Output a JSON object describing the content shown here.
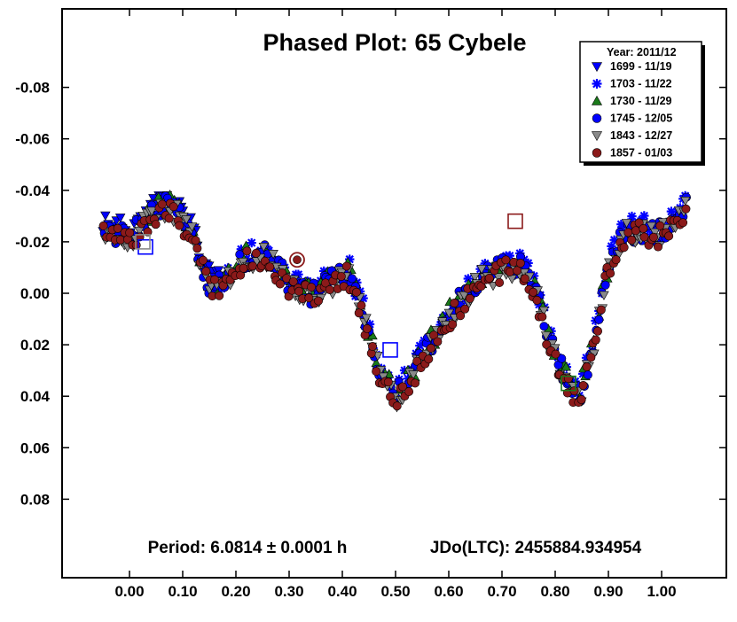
{
  "chart_data": {
    "type": "scatter",
    "title": "Phased Plot: 65 Cybele",
    "xlabel": "",
    "ylabel": "",
    "xlim": [
      -0.13,
      1.13
    ],
    "ylim": [
      0.11,
      -0.11
    ],
    "y_inverted": true,
    "x_ticks": [
      0.0,
      0.1,
      0.2,
      0.3,
      0.4,
      0.5,
      0.6,
      0.7,
      0.8,
      0.9,
      1.0
    ],
    "x_tick_labels": [
      "0.00",
      "0.10",
      "0.20",
      "0.30",
      "0.40",
      "0.50",
      "0.60",
      "0.70",
      "0.80",
      "0.90",
      "1.00"
    ],
    "y_ticks": [
      -0.08,
      -0.06,
      -0.04,
      -0.02,
      0.0,
      0.02,
      0.04,
      0.06,
      0.08
    ],
    "y_tick_labels": [
      "-0.08",
      "-0.06",
      "-0.04",
      "-0.02",
      "0.00",
      "0.02",
      "0.04",
      "0.06",
      "0.08"
    ],
    "grid": false,
    "legend": {
      "position": "top-right",
      "header": "Year: 2011/12"
    },
    "annotations": {
      "period": "Period: 6.0814 ± 0.0001 h",
      "jdo": "JDo(LTC): 2455884.934954"
    },
    "lightcurve_phase": [
      -0.05,
      0.0,
      0.03,
      0.06,
      0.09,
      0.12,
      0.15,
      0.18,
      0.22,
      0.26,
      0.3,
      0.34,
      0.38,
      0.41,
      0.44,
      0.47,
      0.5,
      0.54,
      0.58,
      0.62,
      0.66,
      0.7,
      0.73,
      0.76,
      0.79,
      0.82,
      0.845,
      0.87,
      0.9,
      0.93,
      0.96,
      1.0,
      1.05
    ],
    "lightcurve_mag": [
      -0.026,
      -0.022,
      -0.028,
      -0.034,
      -0.033,
      -0.022,
      -0.004,
      -0.005,
      -0.014,
      -0.015,
      -0.005,
      0.0,
      -0.005,
      -0.01,
      0.008,
      0.03,
      0.04,
      0.028,
      0.014,
      0.003,
      -0.006,
      -0.01,
      -0.012,
      -0.003,
      0.018,
      0.033,
      0.04,
      0.022,
      -0.012,
      -0.024,
      -0.025,
      -0.024,
      -0.034
    ],
    "series": [
      {
        "name": "1699 - 11/19",
        "color": "#0000ff",
        "marker": "triangle-down",
        "phase_start": -0.05,
        "phase_end": 0.18,
        "count": 60,
        "start_marker": {
          "x": 0.03,
          "y": -0.018
        }
      },
      {
        "name": "1703 - 11/22",
        "color": "#0000ff",
        "marker": "asterisk",
        "phase_start": 0.16,
        "phase_end": 1.05,
        "count": 150
      },
      {
        "name": "1730 - 11/29",
        "color": "#1a7a1a",
        "marker": "triangle-up",
        "phase_start": 0.02,
        "phase_end": 0.9,
        "count": 120,
        "start_marker": {
          "x": 0.825,
          "y": 0.035
        }
      },
      {
        "name": "1745 - 12/05",
        "color": "#0000ff",
        "marker": "circle",
        "phase_start": -0.05,
        "phase_end": 1.05,
        "count": 200,
        "start_marker": {
          "x": 0.49,
          "y": 0.022
        }
      },
      {
        "name": "1843 - 12/27",
        "color": "#8a8a8a",
        "marker": "triangle-down",
        "phase_start": -0.05,
        "phase_end": 1.05,
        "count": 180,
        "start_marker": {
          "x": 0.025,
          "y": -0.02
        }
      },
      {
        "name": "1857 - 01/03",
        "color": "#8b1a1a",
        "marker": "circle",
        "phase_start": -0.05,
        "phase_end": 1.05,
        "count": 200,
        "start_marker": {
          "x": 0.725,
          "y": -0.028
        },
        "start_circle": {
          "x": 0.315,
          "y": -0.013
        }
      }
    ]
  }
}
